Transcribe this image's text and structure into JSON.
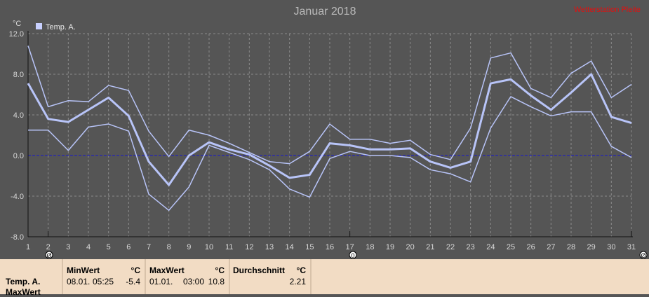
{
  "chart_data": {
    "type": "line",
    "title": "Januar 2018",
    "ylabel": "°C",
    "x": [
      1,
      2,
      3,
      4,
      5,
      6,
      7,
      8,
      9,
      10,
      11,
      12,
      13,
      14,
      15,
      16,
      17,
      18,
      19,
      20,
      21,
      22,
      23,
      24,
      25,
      26,
      27,
      28,
      29,
      30,
      31
    ],
    "ylim": [
      -8.0,
      12.0
    ],
    "yticks": [
      "12.0",
      "8.0",
      "4.0",
      "0.0",
      "-4.0",
      "-8.0"
    ],
    "ytick_values": [
      12,
      8,
      4,
      0,
      -4,
      -8
    ],
    "legend": [
      "Temp. A."
    ],
    "zero_line": true,
    "grid": true,
    "series": [
      {
        "name": "Temp. A.",
        "role": "max",
        "values": [
          10.8,
          4.8,
          5.4,
          5.3,
          6.9,
          6.4,
          2.4,
          -0.1,
          2.5,
          2.0,
          1.2,
          0.3,
          -0.6,
          -0.8,
          0.4,
          3.1,
          1.6,
          1.6,
          1.2,
          1.5,
          0.1,
          -0.4,
          2.7,
          9.6,
          10.1,
          6.6,
          5.7,
          8.1,
          9.3,
          5.7,
          7.0
        ]
      },
      {
        "name": "Temp. A.",
        "role": "avg",
        "values": [
          7.1,
          3.6,
          3.3,
          4.5,
          5.7,
          3.9,
          -0.6,
          -2.9,
          0.0,
          1.3,
          0.6,
          0.1,
          -1.0,
          -2.2,
          -1.9,
          1.2,
          1.0,
          0.6,
          0.6,
          0.7,
          -0.6,
          -1.2,
          -0.6,
          7.1,
          7.5,
          5.9,
          4.5,
          6.2,
          8.0,
          3.8,
          3.2
        ]
      },
      {
        "name": "Temp. A.",
        "role": "min",
        "values": [
          2.5,
          2.5,
          0.5,
          2.8,
          3.1,
          2.4,
          -3.8,
          -5.4,
          -3.1,
          1.0,
          0.3,
          -0.4,
          -1.4,
          -3.3,
          -4.1,
          -0.3,
          0.4,
          0.0,
          0.0,
          -0.2,
          -1.4,
          -1.8,
          -2.6,
          2.7,
          5.8,
          4.8,
          3.9,
          4.3,
          4.3,
          0.9,
          -0.2
        ]
      }
    ],
    "line_color": "#b8c4f8",
    "zero_line_color": "#1818d0"
  },
  "header": {
    "title": "Januar 2018",
    "watermark": "Wetterstation Pleite",
    "unit": "°C"
  },
  "legend": {
    "label": "Temp. A.",
    "color": "#c8d0ff"
  },
  "markers": {
    "marker_a": "Ø",
    "marker_b": "0",
    "marker_c": "Ø"
  },
  "stats": {
    "row_label": "Temp. A.",
    "row_label2": "MaxWert",
    "min": {
      "head": "MinWert",
      "unit": "°C",
      "date": "08.01.",
      "time": "05:25",
      "value": "-5.4"
    },
    "max": {
      "head": "MaxWert",
      "unit": "°C",
      "date": "01.01.",
      "time": "03:00",
      "value": "10.8"
    },
    "avg": {
      "head": "Durchschnitt",
      "unit": "°C",
      "value": "2.21"
    }
  }
}
